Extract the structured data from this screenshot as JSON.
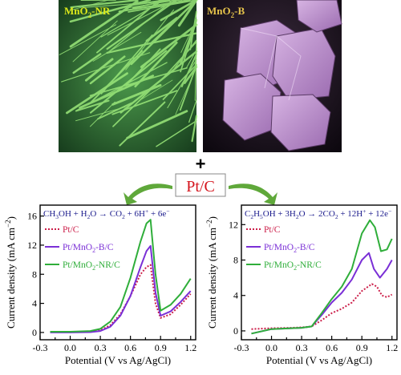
{
  "images": {
    "left_label": "MnO2-NR",
    "left_label_main": "MnO",
    "left_label_sub": "2",
    "left_label_suffix": "-NR",
    "right_label_main": "MnO",
    "right_label_sub": "2",
    "right_label_suffix": "-B",
    "left_color": "#dce81a",
    "right_color": "#e6c44b"
  },
  "center": {
    "plus": "+",
    "catalyst": "Pt/C",
    "catalyst_color": "#d4141c",
    "arrow_color": "#5fa83a"
  },
  "chart_data": [
    {
      "type": "line",
      "equation": "CH3OH + H2O → CO2 + 6H+ + 6e−",
      "eq_parts": {
        "a": "CH",
        "b": "3",
        "c": "OH + H",
        "d": "2",
        "e": "O → CO",
        "f": "2",
        "g": " + 6H",
        "h": "+",
        "i": " + 6e",
        "j": "−"
      },
      "xlabel": "Potential (V vs Ag/AgCl)",
      "ylabel": "Current density (mA cm",
      "ylabel_sup": "−2",
      "ylabel_close": ")",
      "xlim": [
        -0.3,
        1.25
      ],
      "ylim": [
        -1,
        17.5
      ],
      "xticks": [
        "-0.3",
        "0.0",
        "0.3",
        "0.6",
        "0.9",
        "1.2"
      ],
      "xtick_vals": [
        -0.3,
        0.0,
        0.3,
        0.6,
        0.9,
        1.2
      ],
      "yticks": [
        "0",
        "4",
        "8",
        "12",
        "16"
      ],
      "ytick_vals": [
        0,
        4,
        8,
        12,
        16
      ],
      "series": [
        {
          "name": "Pt/C",
          "color": "#cc1f4a",
          "dash": "2,2",
          "x": [
            -0.2,
            0.0,
            0.2,
            0.3,
            0.4,
            0.5,
            0.6,
            0.7,
            0.76,
            0.8,
            0.85,
            0.9,
            1.0,
            1.1,
            1.2
          ],
          "y": [
            0.05,
            0.05,
            0.1,
            0.3,
            1.0,
            2.5,
            5.0,
            8.0,
            9.0,
            9.3,
            4.0,
            2.0,
            2.5,
            3.8,
            5.3
          ]
        },
        {
          "name": "Pt/MnO2-B/C",
          "color": "#7a2fd6",
          "dash": "",
          "x": [
            -0.2,
            0.0,
            0.2,
            0.3,
            0.4,
            0.5,
            0.6,
            0.7,
            0.76,
            0.8,
            0.85,
            0.9,
            1.0,
            1.1,
            1.2
          ],
          "y": [
            0.0,
            0.0,
            0.05,
            0.2,
            0.8,
            2.3,
            5.0,
            9.0,
            11.2,
            11.9,
            5.5,
            2.3,
            2.9,
            4.2,
            5.7
          ]
        },
        {
          "name": "Pt/MnO2-NR/C",
          "color": "#2fae3a",
          "dash": "",
          "x": [
            -0.2,
            0.0,
            0.2,
            0.3,
            0.4,
            0.5,
            0.6,
            0.7,
            0.76,
            0.8,
            0.85,
            0.9,
            1.0,
            1.1,
            1.2
          ],
          "y": [
            0.1,
            0.1,
            0.2,
            0.5,
            1.5,
            3.5,
            7.5,
            12.5,
            15.0,
            15.5,
            8.0,
            3.0,
            3.8,
            5.3,
            7.4
          ]
        }
      ],
      "legend": [
        {
          "main": "Pt/C",
          "color": "#cc1f4a"
        },
        {
          "main": "Pt/MnO",
          "sub": "2",
          "suffix": "-B/C",
          "color": "#7a2fd6"
        },
        {
          "main": "Pt/MnO",
          "sub": "2",
          "suffix": "-NR/C",
          "color": "#2fae3a"
        }
      ]
    },
    {
      "type": "line",
      "equation": "C2H5OH + 3H2O → 2CO2 + 12H+ + 12e−",
      "eq_parts": {
        "a": "C",
        "b": "2",
        "c": "H",
        "d": "5",
        "e": "OH + 3H",
        "f": "2",
        "g": "O → 2CO",
        "h": "2",
        "i": " + 12H",
        "j": "+",
        "k": " + 12e",
        "l": "−"
      },
      "xlabel": "Potential (V vs Ag/AgCl)",
      "ylabel": "Current density (mA cm",
      "ylabel_sup": "−2",
      "ylabel_close": ")",
      "xlim": [
        -0.3,
        1.25
      ],
      "ylim": [
        -1,
        14.2
      ],
      "xticks": [
        "-0.3",
        "0.0",
        "0.3",
        "0.6",
        "0.9",
        "1.2"
      ],
      "xtick_vals": [
        -0.3,
        0.0,
        0.3,
        0.6,
        0.9,
        1.2
      ],
      "yticks": [
        "0",
        "4",
        "8",
        "12"
      ],
      "ytick_vals": [
        0,
        4,
        8,
        12
      ],
      "series": [
        {
          "name": "Pt/C",
          "color": "#cc1f4a",
          "dash": "2,2",
          "x": [
            -0.2,
            0.0,
            0.2,
            0.3,
            0.4,
            0.5,
            0.6,
            0.7,
            0.8,
            0.9,
            1.0,
            1.05,
            1.1,
            1.15,
            1.2
          ],
          "y": [
            0.2,
            0.3,
            0.35,
            0.4,
            0.5,
            1.2,
            2.0,
            2.5,
            3.2,
            4.5,
            5.3,
            5.0,
            4.0,
            3.8,
            4.1
          ]
        },
        {
          "name": "Pt/MnO2-B/C",
          "color": "#7a2fd6",
          "dash": "",
          "x": [
            -0.2,
            0.0,
            0.2,
            0.3,
            0.4,
            0.5,
            0.6,
            0.7,
            0.8,
            0.9,
            0.97,
            1.02,
            1.08,
            1.15,
            1.2
          ],
          "y": [
            -0.3,
            0.2,
            0.3,
            0.35,
            0.5,
            1.8,
            3.2,
            4.3,
            5.8,
            8.0,
            8.8,
            7.0,
            6.0,
            7.0,
            8.0
          ]
        },
        {
          "name": "Pt/MnO2-NR/C",
          "color": "#2fae3a",
          "dash": "",
          "x": [
            -0.2,
            0.0,
            0.2,
            0.3,
            0.4,
            0.5,
            0.6,
            0.7,
            0.8,
            0.9,
            0.98,
            1.03,
            1.09,
            1.15,
            1.2
          ],
          "y": [
            -0.3,
            0.2,
            0.3,
            0.35,
            0.5,
            2.0,
            3.6,
            5.0,
            7.0,
            11.0,
            12.5,
            11.7,
            9.0,
            9.2,
            10.4
          ]
        }
      ],
      "legend": [
        {
          "main": "Pt/C",
          "color": "#cc1f4a"
        },
        {
          "main": "Pt/MnO",
          "sub": "2",
          "suffix": "-B/C",
          "color": "#7a2fd6"
        },
        {
          "main": "Pt/MnO",
          "sub": "2",
          "suffix": "-NR/C",
          "color": "#2fae3a"
        }
      ]
    }
  ]
}
